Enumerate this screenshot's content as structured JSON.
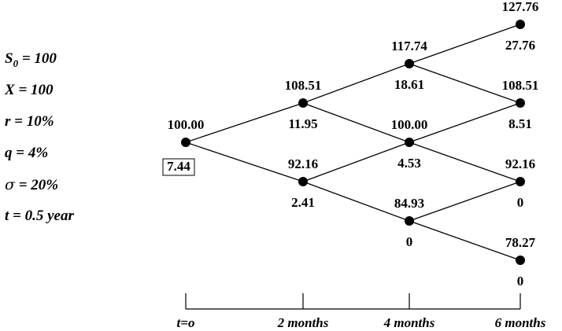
{
  "parameters": {
    "s0": {
      "symbol": "S",
      "subscript": "0",
      "rest": " = 100"
    },
    "x": {
      "symbol": "X",
      "rest": " = 100"
    },
    "r": {
      "symbol": "r",
      "rest": " = 10%"
    },
    "q": {
      "symbol": "q",
      "rest": " = 4%"
    },
    "sigma": {
      "symbol": "σ",
      "rest": " = 20%"
    },
    "t": {
      "symbol": "t",
      "rest": " = 0.5 year"
    }
  },
  "tree": {
    "nodes": [
      {
        "id": "n0",
        "step": 0,
        "level": 0,
        "price": "100.00",
        "option": "7.44",
        "option_boxed": true
      },
      {
        "id": "n1u",
        "step": 1,
        "level": 1,
        "price": "108.51",
        "option": "11.95"
      },
      {
        "id": "n1d",
        "step": 1,
        "level": -1,
        "price": "92.16",
        "option": "2.41"
      },
      {
        "id": "n2uu",
        "step": 2,
        "level": 2,
        "price": "117.74",
        "option": "18.61"
      },
      {
        "id": "n2m",
        "step": 2,
        "level": 0,
        "price": "100.00",
        "option": "4.53"
      },
      {
        "id": "n2dd",
        "step": 2,
        "level": -2,
        "price": "84.93",
        "option": "0"
      },
      {
        "id": "n3a",
        "step": 3,
        "level": 3,
        "price": "127.76",
        "option": "27.76"
      },
      {
        "id": "n3b",
        "step": 3,
        "level": 1,
        "price": "108.51",
        "option": "8.51"
      },
      {
        "id": "n3c",
        "step": 3,
        "level": -1,
        "price": "92.16",
        "option": "0"
      },
      {
        "id": "n3d",
        "step": 3,
        "level": -3,
        "price": "78.27",
        "option": "0"
      }
    ],
    "edges": [
      [
        "n0",
        "n1u"
      ],
      [
        "n0",
        "n1d"
      ],
      [
        "n1u",
        "n2uu"
      ],
      [
        "n1u",
        "n2m"
      ],
      [
        "n1d",
        "n2m"
      ],
      [
        "n1d",
        "n2dd"
      ],
      [
        "n2uu",
        "n3a"
      ],
      [
        "n2uu",
        "n3b"
      ],
      [
        "n2m",
        "n3b"
      ],
      [
        "n2m",
        "n3c"
      ],
      [
        "n2dd",
        "n3c"
      ],
      [
        "n2dd",
        "n3d"
      ]
    ]
  },
  "timeline": {
    "labels": [
      "t=o",
      "2 months",
      "4 months",
      "6 months"
    ]
  },
  "colors": {
    "ink": "#000000",
    "background": "#ffffff"
  }
}
